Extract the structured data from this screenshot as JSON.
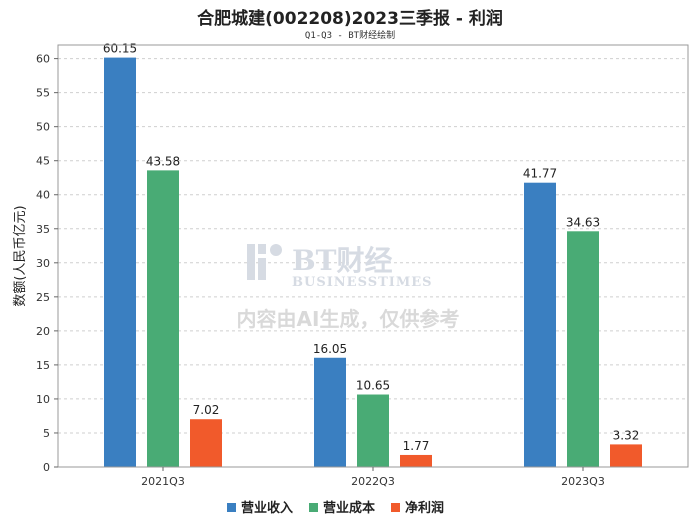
{
  "header": {
    "title": "合肥城建(002208)2023三季报 - 利润",
    "subtitle": "Q1-Q3 - BT财经绘制"
  },
  "watermark": {
    "brand": "BT财经",
    "brand_en": "BUSINESSTIMES",
    "note": "内容由AI生成，仅供参考"
  },
  "chart_data": {
    "type": "bar",
    "title": "合肥城建(002208)2023三季报 - 利润",
    "subtitle": "Q1-Q3 - BT财经绘制",
    "xlabel": "",
    "ylabel": "数额(人民币亿元)",
    "categories": [
      "2021Q3",
      "2022Q3",
      "2023Q3"
    ],
    "series": [
      {
        "name": "营业收入",
        "color": "#3a7fc1",
        "values": [
          60.15,
          16.05,
          41.77
        ]
      },
      {
        "name": "营业成本",
        "color": "#49ab75",
        "values": [
          43.58,
          10.65,
          34.63
        ]
      },
      {
        "name": "净利润",
        "color": "#f15a2b",
        "values": [
          7.02,
          1.77,
          3.32
        ]
      }
    ],
    "ylim": [
      0,
      62
    ],
    "yticks": [
      0,
      5,
      10,
      15,
      20,
      25,
      30,
      35,
      40,
      45,
      50,
      55,
      60
    ],
    "grid": true,
    "legend": "bottom-center"
  }
}
